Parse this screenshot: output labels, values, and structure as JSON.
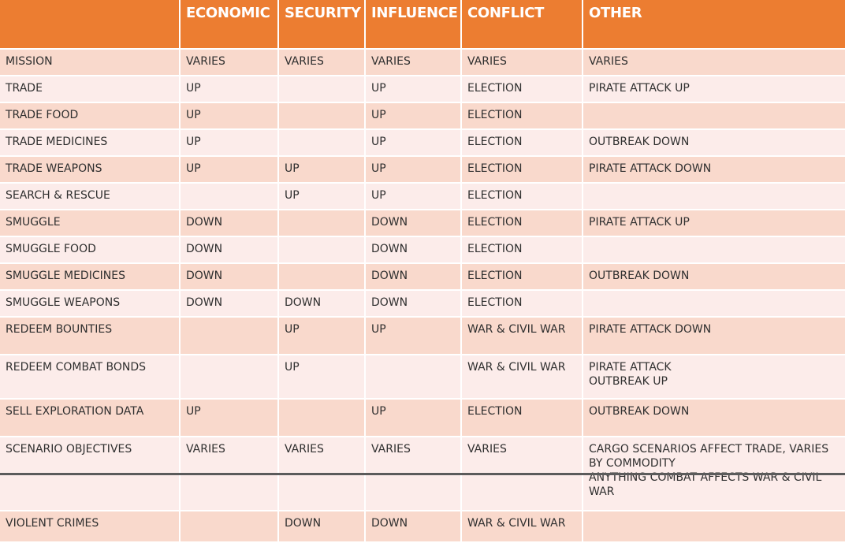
{
  "headers": [
    "",
    "ECONOMIC",
    "SECURITY",
    "INFLUENCE",
    "CONFLICT",
    "OTHER"
  ],
  "rows": [
    [
      "MISSION",
      "VARIES",
      "VARIES",
      "VARIES",
      "VARIES",
      "VARIES"
    ],
    [
      "TRADE",
      "UP",
      "",
      "UP",
      "ELECTION",
      "PIRATE ATTACK UP"
    ],
    [
      "TRADE FOOD",
      "UP",
      "",
      "UP",
      "ELECTION",
      ""
    ],
    [
      "TRADE MEDICINES",
      "UP",
      "",
      "UP",
      "ELECTION",
      "OUTBREAK DOWN"
    ],
    [
      "TRADE WEAPONS",
      "UP",
      "UP",
      "UP",
      "ELECTION",
      "PIRATE ATTACK DOWN"
    ],
    [
      "SEARCH & RESCUE",
      "",
      "UP",
      "UP",
      "ELECTION",
      ""
    ],
    [
      "SMUGGLE",
      "DOWN",
      "",
      "DOWN",
      "ELECTION",
      "PIRATE ATTACK UP"
    ],
    [
      "SMUGGLE FOOD",
      "DOWN",
      "",
      "DOWN",
      "ELECTION",
      ""
    ],
    [
      "SMUGGLE MEDICINES",
      "DOWN",
      "",
      "DOWN",
      "ELECTION",
      "OUTBREAK DOWN"
    ],
    [
      "SMUGGLE WEAPONS",
      "DOWN",
      "DOWN",
      "DOWN",
      "ELECTION",
      ""
    ],
    [
      "REDEEM BOUNTIES",
      "",
      "UP",
      "UP",
      "WAR & CIVIL WAR",
      "PIRATE ATTACK DOWN"
    ],
    [
      "REDEEM COMBAT BONDS",
      "",
      "UP",
      "",
      "WAR & CIVIL WAR",
      "PIRATE ATTACK\nOUTBREAK UP"
    ],
    [
      "SELL EXPLORATION DATA",
      "UP",
      "",
      "UP",
      "ELECTION",
      "OUTBREAK DOWN"
    ],
    [
      "SCENARIO OBJECTIVES",
      "VARIES",
      "VARIES",
      "VARIES",
      "VARIES",
      "CARGO SCENARIOS AFFECT TRADE, VARIES BY COMMODITY\nANYTHING COMBAT AFFECTS WAR & CIVIL WAR"
    ],
    [
      "VIOLENT CRIMES",
      "",
      "DOWN",
      "DOWN",
      "WAR & CIVIL WAR",
      ""
    ]
  ],
  "colors": {
    "header_bg": "#ec7d31",
    "row_odd": "#f9d9cc",
    "row_even": "#fcecea"
  }
}
